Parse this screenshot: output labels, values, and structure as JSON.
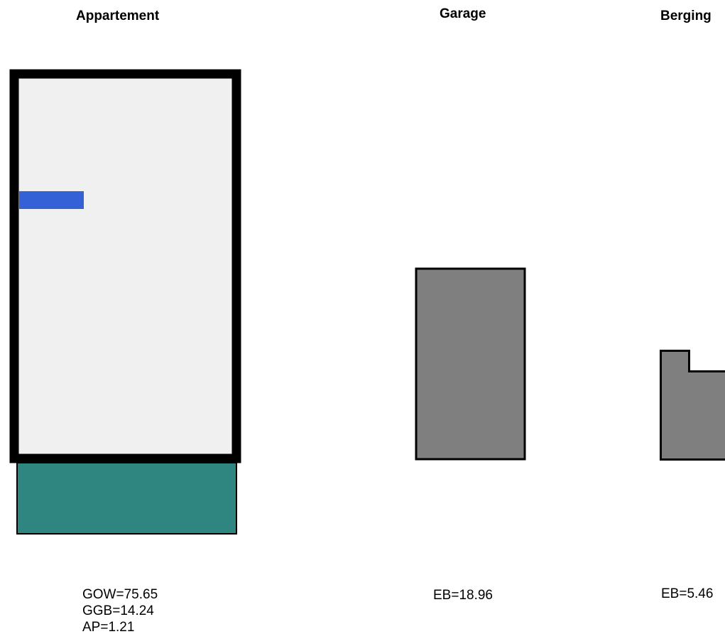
{
  "units": [
    {
      "id": "appartement",
      "title": "Appartement",
      "areas": [
        "GOW=75.65",
        "GGB=14.24",
        "AP=1.21"
      ],
      "colors": {
        "floor": "#f0f0f0",
        "outline": "#000000",
        "balcony": "#2f8580",
        "marker": "#3461d6"
      }
    },
    {
      "id": "garage",
      "title": "Garage",
      "areas": [
        "EB=18.96"
      ],
      "colors": {
        "floor": "#7f7f7f",
        "outline": "#000000"
      }
    },
    {
      "id": "berging",
      "title": "Berging",
      "areas": [
        "EB=5.46"
      ],
      "colors": {
        "floor": "#7f7f7f",
        "outline": "#000000"
      }
    }
  ]
}
